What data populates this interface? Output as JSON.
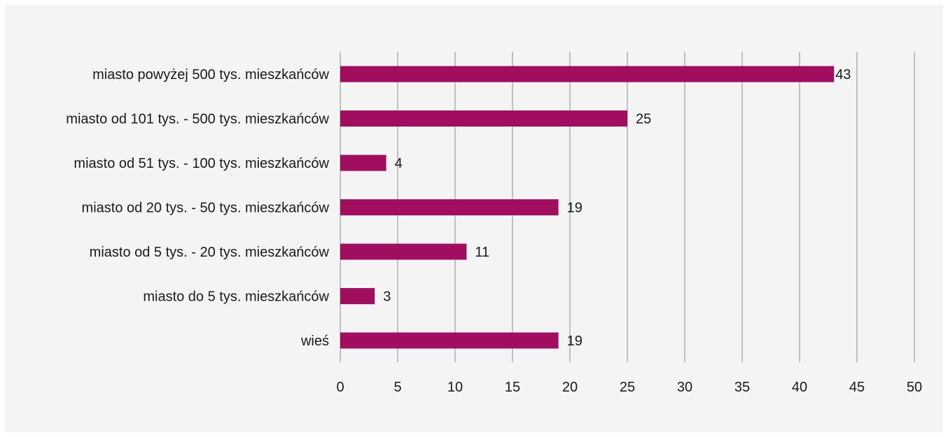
{
  "chart_data": {
    "type": "bar",
    "orientation": "horizontal",
    "categories": [
      "miasto powyżej 500 tys. mieszkańców",
      "miasto od 101 tys. - 500 tys. mieszkańców",
      "miasto od 51 tys. - 100 tys. mieszkańców",
      "miasto od 20 tys. - 50 tys. mieszkańców",
      "miasto od 5 tys. - 20 tys. mieszkańców",
      "miasto do 5 tys. mieszkańców",
      "wieś"
    ],
    "values": [
      43,
      25,
      4,
      19,
      11,
      3,
      19
    ],
    "title": "",
    "xlabel": "",
    "ylabel": "",
    "xlim": [
      0,
      50
    ],
    "xticks": [
      0,
      5,
      10,
      15,
      20,
      25,
      30,
      35,
      40,
      45,
      50
    ],
    "grid": "vertical",
    "legend": "none",
    "bar_color": "#a10e5f",
    "background_color": "#f4f4f4",
    "grid_color": "#8c8c8c"
  }
}
